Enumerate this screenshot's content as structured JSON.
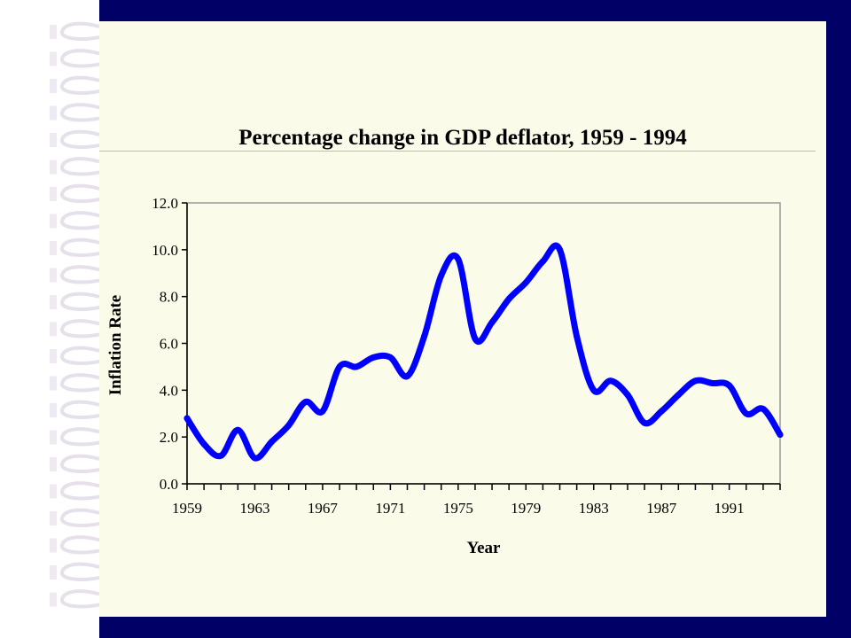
{
  "slide": {
    "frame_color": "#000066",
    "panel_color": "#fbfbe9",
    "decoration": "notebook-spiral-rings"
  },
  "chart_data": {
    "type": "line",
    "title": "Percentage change in GDP deflator, 1959 - 1994",
    "xlabel": "Year",
    "ylabel": "Inflation Rate",
    "ylim": [
      0,
      12
    ],
    "yticks": [
      "0.0",
      "2.0",
      "4.0",
      "6.0",
      "8.0",
      "10.0",
      "12.0"
    ],
    "xticks": [
      "1959",
      "1963",
      "1967",
      "1971",
      "1975",
      "1979",
      "1983",
      "1987",
      "1991"
    ],
    "x": [
      1959,
      1960,
      1961,
      1962,
      1963,
      1964,
      1965,
      1966,
      1967,
      1968,
      1969,
      1970,
      1971,
      1972,
      1973,
      1974,
      1975,
      1976,
      1977,
      1978,
      1979,
      1980,
      1981,
      1982,
      1983,
      1984,
      1985,
      1986,
      1987,
      1988,
      1989,
      1990,
      1991,
      1992,
      1993,
      1994
    ],
    "series": [
      {
        "color": "#0000ff",
        "values": [
          2.8,
          1.7,
          1.2,
          2.3,
          1.1,
          1.8,
          2.5,
          3.5,
          3.1,
          5.0,
          5.0,
          5.4,
          5.4,
          4.6,
          6.3,
          8.9,
          9.6,
          6.2,
          6.9,
          7.9,
          8.6,
          9.5,
          10.0,
          6.3,
          4.0,
          4.4,
          3.8,
          2.6,
          3.1,
          3.8,
          4.4,
          4.3,
          4.2,
          3.0,
          3.2,
          2.1
        ]
      }
    ],
    "grid": false,
    "legend": "none"
  }
}
